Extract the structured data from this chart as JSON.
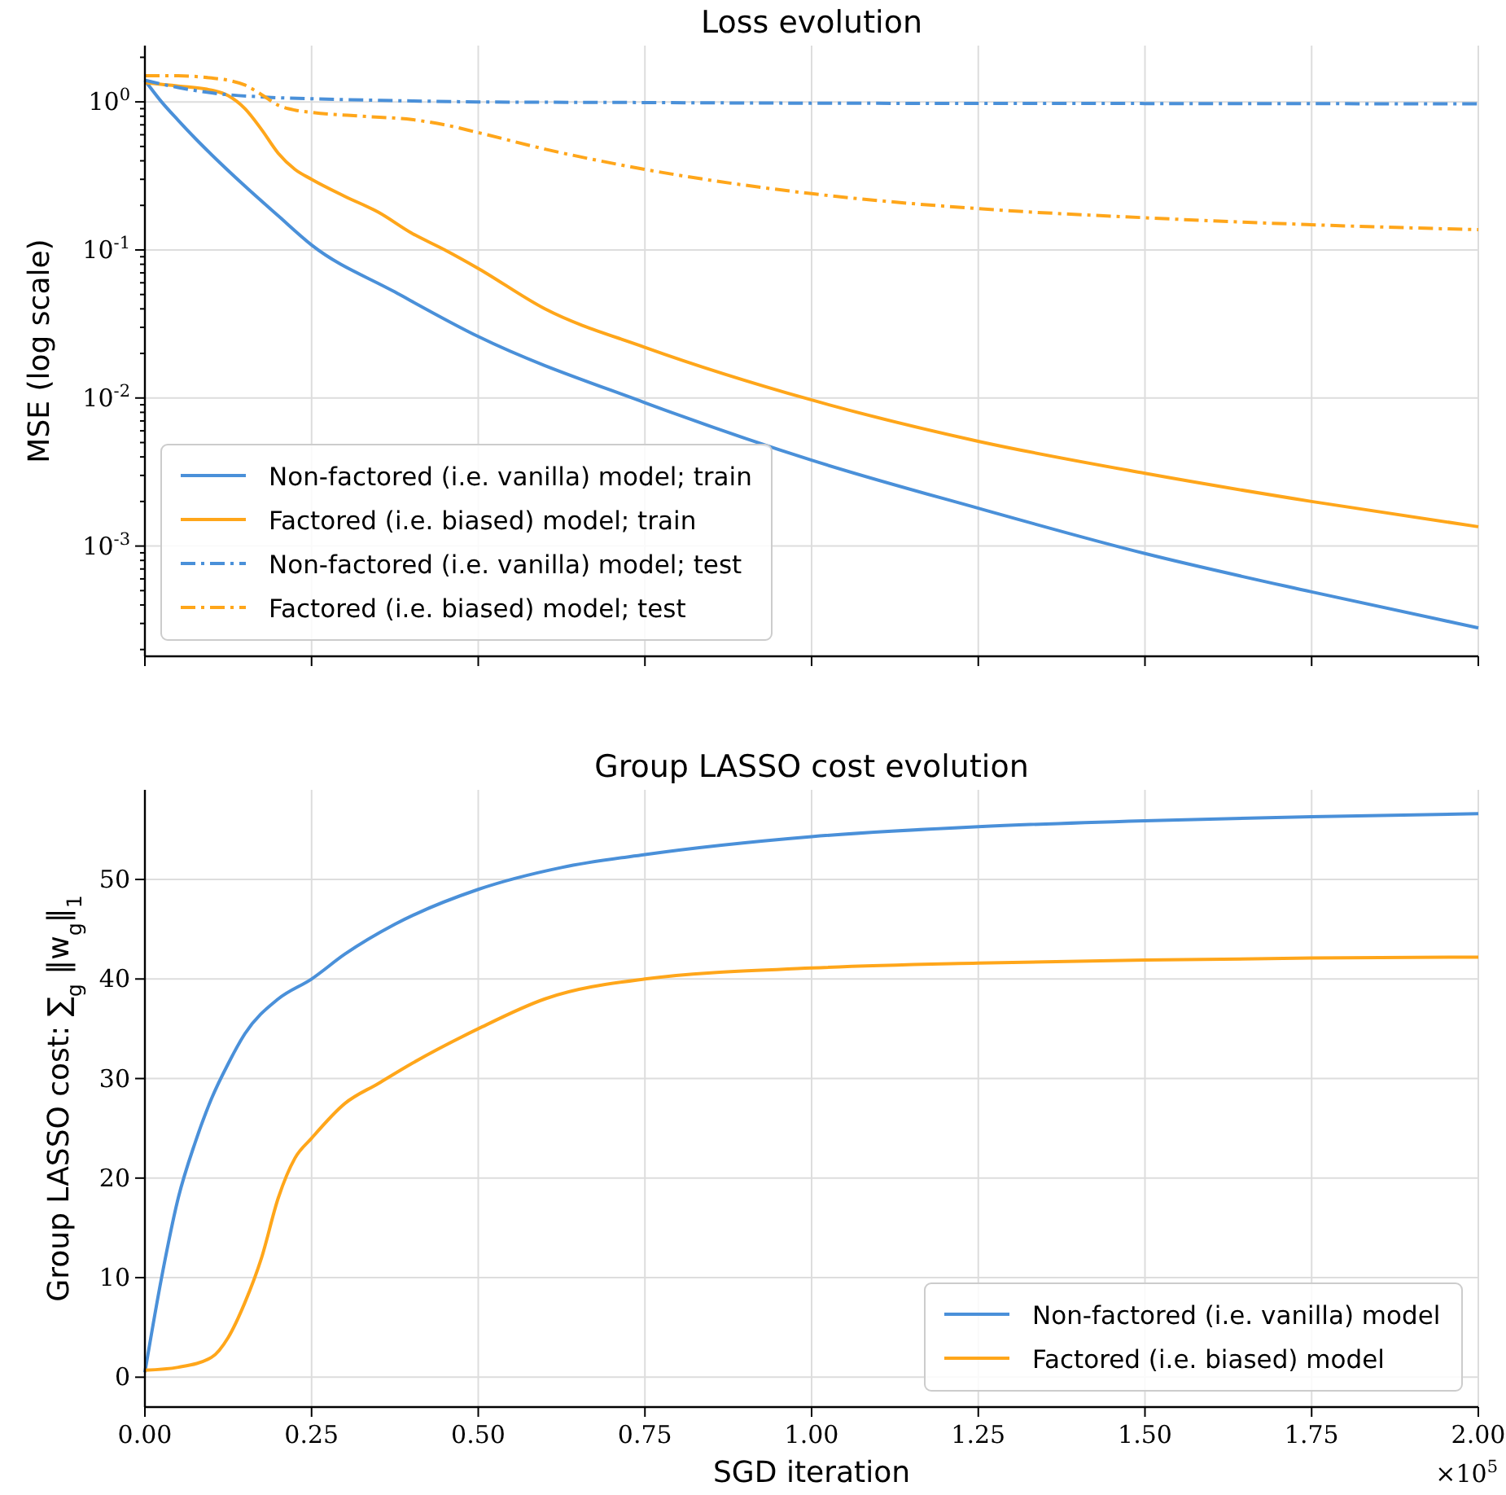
{
  "chart_data": [
    {
      "type": "line",
      "title": "Loss evolution",
      "ylabel": "MSE (log scale)",
      "log": "y",
      "grid": true,
      "legend": "bottom left",
      "tick_labels": "y",
      "xlim": [
        0,
        2
      ],
      "xticks": [
        {
          "value": 0,
          "label": null
        },
        {
          "value": 0.25,
          "label": null
        },
        {
          "value": 0.5,
          "label": null
        },
        {
          "value": 0.75,
          "label": null
        },
        {
          "value": 1,
          "label": null
        },
        {
          "value": 1.25,
          "label": null
        },
        {
          "value": 1.5,
          "label": null
        },
        {
          "value": 1.75,
          "label": null
        },
        {
          "value": 2,
          "label": null
        }
      ],
      "ylim": [
        0.00018,
        2.4
      ],
      "yticks": [
        {
          "value": 0.0002,
          "label": null
        },
        {
          "value": 0.0003,
          "label": null
        },
        {
          "value": 0.0004,
          "label": null
        },
        {
          "value": 0.0005,
          "label": null
        },
        {
          "value": 0.0006,
          "label": null
        },
        {
          "value": 0.0007,
          "label": null
        },
        {
          "value": 0.0008,
          "label": null
        },
        {
          "value": 0.0009,
          "label": null
        },
        {
          "value": 0.001,
          "label": "10$^{-3}$"
        },
        {
          "value": 0.002,
          "label": null
        },
        {
          "value": 0.003,
          "label": null
        },
        {
          "value": 0.004,
          "label": null
        },
        {
          "value": 0.005,
          "label": null
        },
        {
          "value": 0.006,
          "label": null
        },
        {
          "value": 0.007,
          "label": null
        },
        {
          "value": 0.008,
          "label": null
        },
        {
          "value": 0.009,
          "label": null
        },
        {
          "value": 0.01,
          "label": "10$^{-2}$"
        },
        {
          "value": 0.02,
          "label": null
        },
        {
          "value": 0.03,
          "label": null
        },
        {
          "value": 0.04,
          "label": null
        },
        {
          "value": 0.05,
          "label": null
        },
        {
          "value": 0.06,
          "label": null
        },
        {
          "value": 0.07,
          "label": null
        },
        {
          "value": 0.08,
          "label": null
        },
        {
          "value": 0.09,
          "label": null
        },
        {
          "value": 0.1,
          "label": "10$^{-1}$"
        },
        {
          "value": 0.2,
          "label": null
        },
        {
          "value": 0.3,
          "label": null
        },
        {
          "value": 0.4,
          "label": null
        },
        {
          "value": 0.5,
          "label": null
        },
        {
          "value": 0.6,
          "label": null
        },
        {
          "value": 0.7,
          "label": null
        },
        {
          "value": 0.8,
          "label": null
        },
        {
          "value": 0.9,
          "label": null
        },
        {
          "value": 1,
          "label": "10$^{0}$"
        },
        {
          "value": 2,
          "label": null
        }
      ],
      "series": [
        {
          "name": "Non-factored (i.e. vanilla) model; train",
          "color": "#4a90d9",
          "line_style": "solid",
          "x": [
            0,
            0.025,
            0.05,
            0.075,
            0.1,
            0.15,
            0.2,
            0.25,
            0.375,
            0.5,
            0.75,
            1,
            1.25,
            1.5,
            1.75,
            2
          ],
          "values": [
            1.4,
            1.0,
            0.75,
            0.57,
            0.44,
            0.27,
            0.17,
            0.108,
            0.052,
            0.026,
            0.0093,
            0.0038,
            0.0018,
            0.00089,
            0.00049,
            0.00028
          ]
        },
        {
          "name": "Factored (i.e. biased) model; train",
          "color": "#ffa61a",
          "line_style": "solid",
          "x": [
            0,
            0.05,
            0.1,
            0.125,
            0.15,
            0.175,
            0.2,
            0.225,
            0.25,
            0.3,
            0.35,
            0.4,
            0.45,
            0.5,
            0.6,
            0.75,
            1,
            1.25,
            1.5,
            1.75,
            2
          ],
          "values": [
            1.35,
            1.28,
            1.2,
            1.1,
            0.9,
            0.65,
            0.45,
            0.35,
            0.3,
            0.23,
            0.18,
            0.13,
            0.1,
            0.075,
            0.04,
            0.022,
            0.0097,
            0.0051,
            0.0031,
            0.002,
            0.00135
          ]
        },
        {
          "name": "Non-factored (i.e. vanilla) model; test",
          "color": "#4a90d9",
          "line_style": "dashdot",
          "x": [
            0,
            0.05,
            0.1,
            0.175,
            0.25,
            0.375,
            0.5,
            0.75,
            1,
            1.5,
            2
          ],
          "values": [
            1.4,
            1.25,
            1.15,
            1.08,
            1.05,
            1.02,
            1.0,
            0.99,
            0.98,
            0.975,
            0.97
          ]
        },
        {
          "name": "Factored (i.e. biased) model; test",
          "color": "#ffa61a",
          "line_style": "dashdot",
          "x": [
            0,
            0.05,
            0.1,
            0.125,
            0.15,
            0.175,
            0.2,
            0.225,
            0.25,
            0.325,
            0.4,
            0.45,
            0.5,
            0.6,
            0.75,
            1,
            1.25,
            1.5,
            1.75,
            2
          ],
          "values": [
            1.5,
            1.5,
            1.45,
            1.4,
            1.3,
            1.12,
            0.95,
            0.88,
            0.85,
            0.8,
            0.76,
            0.7,
            0.62,
            0.48,
            0.35,
            0.24,
            0.19,
            0.165,
            0.148,
            0.137
          ]
        }
      ]
    },
    {
      "type": "line",
      "title": "Group LASSO cost evolution",
      "xlabel": "SGD iteration",
      "ylabel": "Group LASSO cost: ∑$_{g}$ ‖w$_{g}$‖$_{1}$",
      "grid": true,
      "legend": "bottom right",
      "annotations": [
        "×10$^{5}$"
      ],
      "xlim": [
        0,
        2
      ],
      "xticks": [
        {
          "value": 0,
          "label": "0.00"
        },
        {
          "value": 0.25,
          "label": "0.25"
        },
        {
          "value": 0.5,
          "label": "0.50"
        },
        {
          "value": 0.75,
          "label": "0.75"
        },
        {
          "value": 1,
          "label": "1.00"
        },
        {
          "value": 1.25,
          "label": "1.25"
        },
        {
          "value": 1.5,
          "label": "1.50"
        },
        {
          "value": 1.75,
          "label": "1.75"
        },
        {
          "value": 2,
          "label": "2.00"
        }
      ],
      "ylim": [
        -3,
        59
      ],
      "yticks": [
        0,
        10,
        20,
        30,
        40,
        50
      ],
      "series": [
        {
          "name": "Non-factored (i.e. vanilla) model",
          "color": "#4a90d9",
          "line_style": "solid",
          "x": [
            0,
            0.025,
            0.05,
            0.075,
            0.1,
            0.125,
            0.15,
            0.2,
            0.25,
            0.3,
            0.375,
            0.5,
            0.625,
            0.75,
            1,
            1.25,
            1.5,
            1.75,
            2
          ],
          "values": [
            0.5,
            10,
            18,
            23.5,
            28,
            31.5,
            34.5,
            38,
            40,
            42.5,
            45.5,
            49,
            51.2,
            52.5,
            54.3,
            55.3,
            55.9,
            56.3,
            56.6
          ]
        },
        {
          "name": "Factored (i.e. biased) model",
          "color": "#ffa61a",
          "line_style": "solid",
          "x": [
            0,
            0.05,
            0.1,
            0.125,
            0.15,
            0.175,
            0.2,
            0.225,
            0.25,
            0.3,
            0.35,
            0.4,
            0.5,
            0.6,
            0.75,
            1,
            1.25,
            1.5,
            1.75,
            2
          ],
          "values": [
            0.7,
            1,
            2,
            4,
            7.5,
            12,
            18,
            22,
            24,
            27.5,
            29.5,
            31.5,
            35,
            38,
            40,
            41.1,
            41.6,
            41.9,
            42.1,
            42.2
          ]
        }
      ]
    }
  ]
}
